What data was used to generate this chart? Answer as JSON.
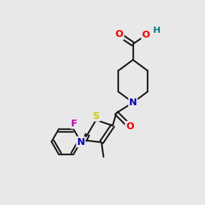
{
  "background_color": "#e8e8e8",
  "bond_color": "#1a1a1a",
  "atom_colors": {
    "O": "#ff0000",
    "N": "#0000cc",
    "S": "#cccc00",
    "F": "#cc00cc",
    "H": "#008080",
    "C": "#1a1a1a"
  },
  "figsize": [
    3.0,
    3.0
  ],
  "dpi": 100
}
